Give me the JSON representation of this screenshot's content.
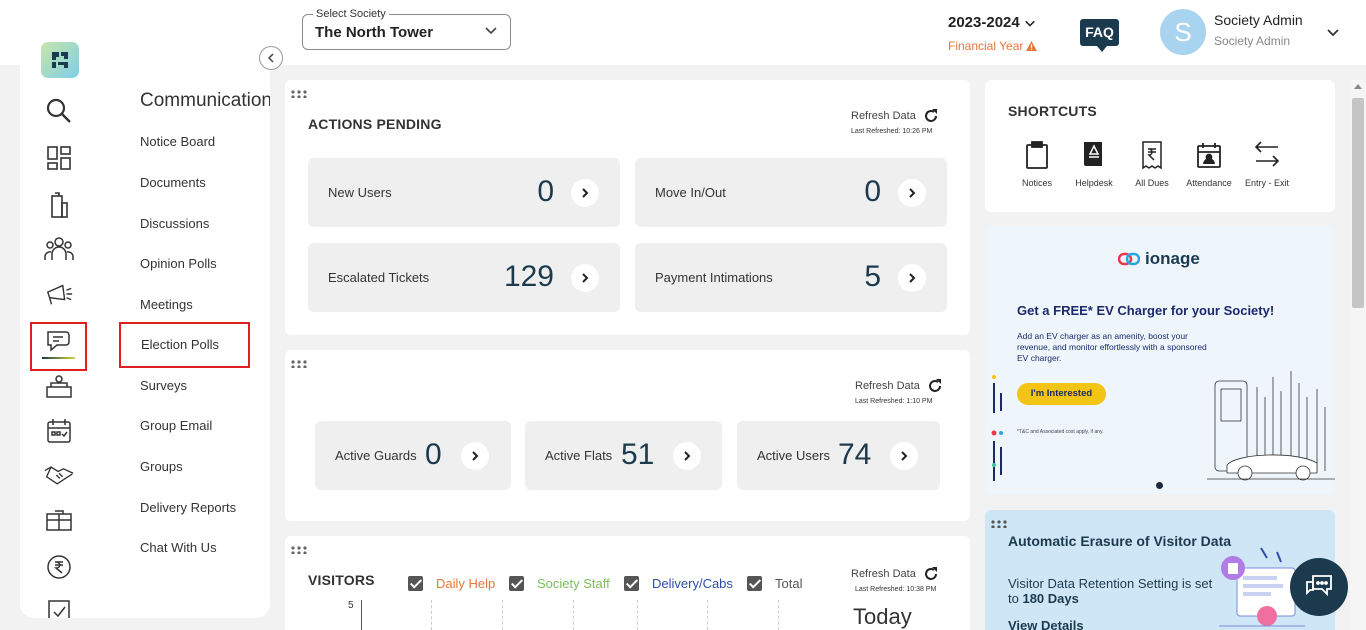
{
  "header": {
    "society_label": "Select Society",
    "society_value": "The North Tower",
    "financial_year": "2023-2024",
    "financial_year_label": "Financial Year",
    "faq": "FAQ",
    "avatar_initial": "S",
    "user_name": "Society Admin",
    "user_role": "Society Admin"
  },
  "sidebar": {
    "menu_title": "Communications",
    "items": [
      {
        "label": "Notice Board"
      },
      {
        "label": "Documents"
      },
      {
        "label": "Discussions"
      },
      {
        "label": "Opinion Polls"
      },
      {
        "label": "Meetings"
      },
      {
        "label": "Election Polls"
      },
      {
        "label": "Surveys"
      },
      {
        "label": "Group Email"
      },
      {
        "label": "Groups"
      },
      {
        "label": "Delivery Reports"
      },
      {
        "label": "Chat With Us"
      }
    ],
    "rail_icons": [
      "search-icon",
      "dashboard-icon",
      "building-icon",
      "residents-icon",
      "announcement-icon",
      "communications-icon",
      "amenities-icon",
      "calendar-icon",
      "handshake-icon",
      "helpdesk-icon",
      "rupee-icon",
      "reports-icon"
    ]
  },
  "actions": {
    "title": "ACTIONS PENDING",
    "refresh_label": "Refresh Data",
    "last_refreshed": "Last Refreshed: 10:26 PM",
    "stats": [
      {
        "label": "New Users",
        "value": "0"
      },
      {
        "label": "Move In/Out",
        "value": "0"
      },
      {
        "label": "Escalated Tickets",
        "value": "129"
      },
      {
        "label": "Payment Intimations",
        "value": "5"
      }
    ]
  },
  "counts": {
    "refresh_label": "Refresh Data",
    "last_refreshed": "Last Refreshed: 1:10 PM",
    "stats": [
      {
        "label": "Active Guards",
        "value": "0"
      },
      {
        "label": "Active Flats",
        "value": "51"
      },
      {
        "label": "Active Users",
        "value": "74"
      }
    ]
  },
  "visitors": {
    "title": "VISITORS",
    "refresh_label": "Refresh Data",
    "last_refreshed": "Last Refreshed: 10:38 PM",
    "filters": [
      {
        "label": "Daily Help",
        "color": "#e8763a"
      },
      {
        "label": "Society Staff",
        "color": "#7cbf5a"
      },
      {
        "label": "Delivery/Cabs",
        "color": "#2c4fa8"
      },
      {
        "label": "Total",
        "color": "#555555"
      }
    ],
    "y_tick": "5",
    "period": "Today"
  },
  "shortcuts": {
    "title": "SHORTCUTS",
    "items": [
      {
        "label": "Notices"
      },
      {
        "label": "Helpdesk"
      },
      {
        "label": "All Dues"
      },
      {
        "label": "Attendance"
      },
      {
        "label": "Entry - Exit"
      }
    ]
  },
  "promo": {
    "brand": "ionage",
    "headline": "Get a FREE* EV Charger for your Society!",
    "body": "Add an EV charger as an amenity, boost your revenue, and monitor effortlessly with a sponsored EV charger.",
    "cta": "I'm Interested",
    "disclaimer": "*T&C and Associated cost apply, if any."
  },
  "erasure": {
    "title": "Automatic Erasure of Visitor Data",
    "body_prefix": "Visitor Data Retention Setting is set to",
    "body_value": "180 Days",
    "link": "View Details"
  }
}
